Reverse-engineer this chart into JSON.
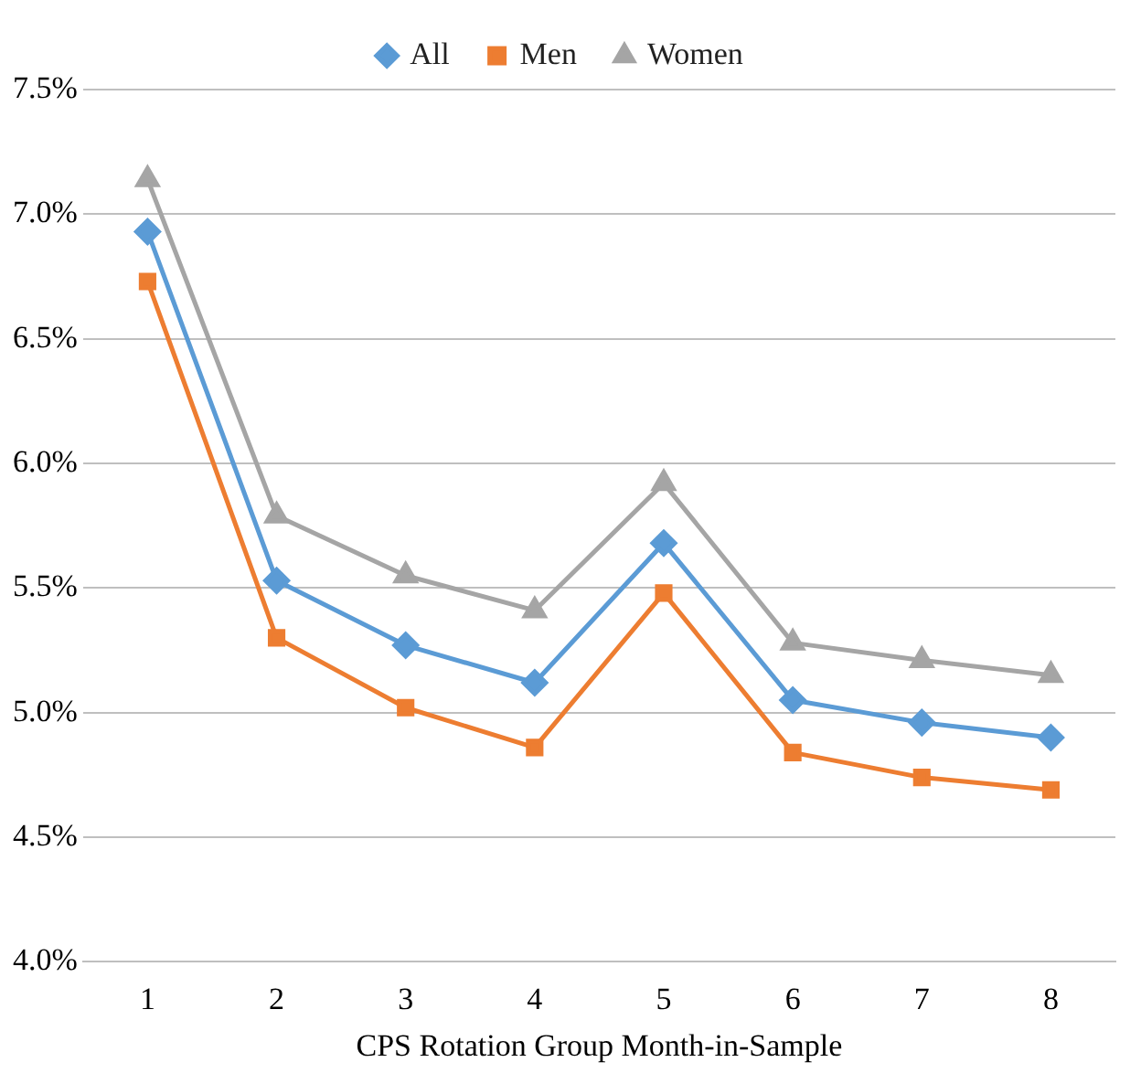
{
  "chart_data": {
    "type": "line",
    "xlabel": "CPS Rotation Group Month-in-Sample",
    "categories": [
      "1",
      "2",
      "3",
      "4",
      "5",
      "6",
      "7",
      "8"
    ],
    "series": [
      {
        "name": "All",
        "color": "#5b9bd5",
        "marker": "diamond",
        "values": [
          6.93,
          5.53,
          5.27,
          5.12,
          5.68,
          5.05,
          4.96,
          4.9
        ]
      },
      {
        "name": "Men",
        "color": "#ed7d31",
        "marker": "square",
        "values": [
          6.73,
          5.3,
          5.02,
          4.86,
          5.48,
          4.84,
          4.74,
          4.69
        ]
      },
      {
        "name": "Women",
        "color": "#a5a5a5",
        "marker": "triangle",
        "values": [
          7.14,
          5.79,
          5.55,
          5.41,
          5.92,
          5.28,
          5.21,
          5.15
        ]
      }
    ],
    "ylim": [
      4,
      7.5
    ],
    "yticks": [
      {
        "value": 4,
        "label": "4.0%"
      },
      {
        "value": 4.5,
        "label": "4.5%"
      },
      {
        "value": 5,
        "label": "5.0%"
      },
      {
        "value": 5.5,
        "label": "5.5%"
      },
      {
        "value": 6,
        "label": "6.0%"
      },
      {
        "value": 6.5,
        "label": "6.5%"
      },
      {
        "value": 7,
        "label": "7.0%"
      },
      {
        "value": 7.5,
        "label": "7.5%"
      }
    ],
    "grid": "y",
    "legend": "top",
    "line_style": "solid"
  }
}
